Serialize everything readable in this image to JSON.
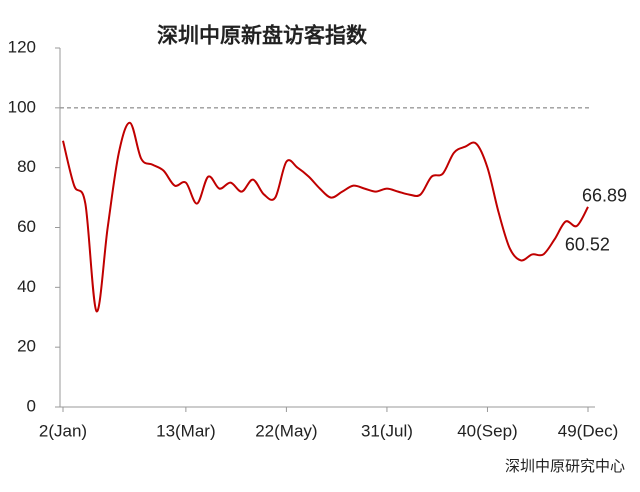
{
  "chart_data": {
    "type": "line",
    "title": "深圳中原新盘访客指数",
    "source": "深圳中原研究中心",
    "x": [
      2,
      3,
      4,
      5,
      6,
      7,
      8,
      9,
      10,
      11,
      12,
      13,
      14,
      15,
      16,
      17,
      18,
      19,
      20,
      21,
      22,
      23,
      24,
      25,
      26,
      27,
      28,
      29,
      30,
      31,
      32,
      33,
      34,
      35,
      36,
      37,
      38,
      39,
      40,
      41,
      42,
      43,
      44,
      45,
      46,
      47,
      48,
      49
    ],
    "series": [
      {
        "color": "#c00000",
        "values": [
          89,
          74,
          68,
          32,
          60,
          85,
          95,
          83,
          81,
          79,
          74,
          75,
          68,
          77,
          73,
          75,
          72,
          76,
          71,
          70,
          82,
          80,
          77,
          73,
          70,
          72,
          74,
          73,
          72,
          73,
          72,
          71,
          71,
          77,
          78,
          85,
          87,
          88,
          80,
          65,
          53,
          49,
          51,
          51,
          56,
          62,
          60.52,
          66.89
        ]
      }
    ],
    "xlim": [
      2,
      49
    ],
    "xticks": [
      {
        "value": 2,
        "label": "2(Jan)"
      },
      {
        "value": 13,
        "label": "13(Mar)"
      },
      {
        "value": 22,
        "label": "22(May)"
      },
      {
        "value": 31,
        "label": "31(Jul)"
      },
      {
        "value": 40,
        "label": "40(Sep)"
      },
      {
        "value": 49,
        "label": "49(Dec)"
      }
    ],
    "ylim": [
      0,
      120
    ],
    "yticks": [
      0,
      20,
      40,
      60,
      80,
      100,
      120
    ],
    "hline": 100
  }
}
